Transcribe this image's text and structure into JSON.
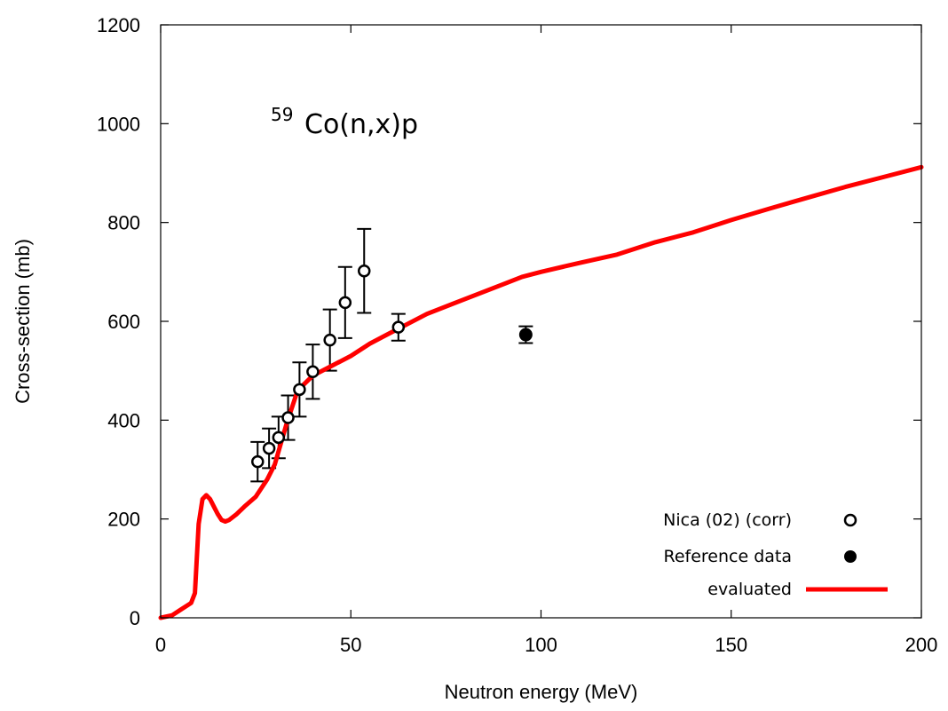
{
  "chart_data": {
    "type": "scatter",
    "title": "",
    "annotation": {
      "superscript": "59",
      "text": "Co(n,x)p"
    },
    "xlabel": "Neutron energy (MeV)",
    "ylabel": "Cross-section (mb)",
    "xlim": [
      0,
      200
    ],
    "ylim": [
      0,
      1200
    ],
    "xticks": [
      0,
      50,
      100,
      150,
      200
    ],
    "yticks": [
      0,
      200,
      400,
      600,
      800,
      1000,
      1200
    ],
    "grid": false,
    "legend_position": "bottom-right",
    "series": [
      {
        "name": "Nica (02) (corr)",
        "marker": "open-circle",
        "points": [
          {
            "x": 25.5,
            "y": 316,
            "err": 40
          },
          {
            "x": 28.5,
            "y": 343,
            "err": 40
          },
          {
            "x": 31.0,
            "y": 365,
            "err": 42
          },
          {
            "x": 33.5,
            "y": 405,
            "err": 45
          },
          {
            "x": 36.5,
            "y": 462,
            "err": 55
          },
          {
            "x": 40.0,
            "y": 498,
            "err": 55
          },
          {
            "x": 44.5,
            "y": 562,
            "err": 62
          },
          {
            "x": 48.5,
            "y": 638,
            "err": 72
          },
          {
            "x": 53.5,
            "y": 702,
            "err": 85
          },
          {
            "x": 62.5,
            "y": 588,
            "err": 27
          }
        ]
      },
      {
        "name": "Reference data",
        "marker": "filled-circle",
        "points": [
          {
            "x": 96,
            "y": 573,
            "err": 17
          }
        ]
      },
      {
        "name": "evaluated",
        "marker": "line",
        "color": "#ff0000",
        "x": [
          0,
          3,
          5,
          8,
          9,
          10,
          11,
          12,
          13,
          14,
          15,
          16,
          17,
          18,
          20,
          22,
          25,
          28,
          30,
          33,
          36,
          40,
          45,
          50,
          55,
          60,
          65,
          70,
          80,
          90,
          95,
          100,
          110,
          120,
          130,
          140,
          150,
          160,
          170,
          180,
          190,
          200
        ],
        "y": [
          0,
          5,
          15,
          30,
          50,
          190,
          240,
          248,
          240,
          225,
          210,
          198,
          195,
          198,
          210,
          225,
          245,
          280,
          310,
          390,
          460,
          490,
          510,
          530,
          555,
          575,
          595,
          615,
          645,
          675,
          690,
          700,
          718,
          735,
          760,
          780,
          805,
          828,
          850,
          872,
          892,
          912
        ]
      }
    ]
  }
}
